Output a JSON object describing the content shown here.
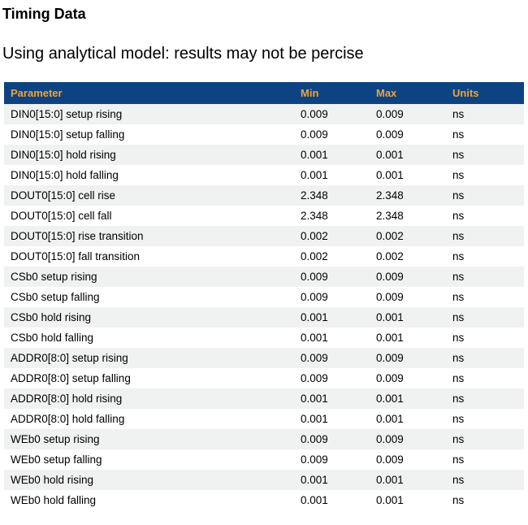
{
  "page": {
    "title": "Timing Data",
    "subtitle": "Using analytical model: results may not be percise"
  },
  "colors": {
    "header_bg": "#0d4382",
    "header_text": "#efa434",
    "row_stripe_bg": "#f0f1f1",
    "row_plain_bg": "#ffffff",
    "body_text": "#000000"
  },
  "table": {
    "columns": [
      "Parameter",
      "Min",
      "Max",
      "Units"
    ],
    "rows": [
      {
        "parameter": "DIN0[15:0] setup rising",
        "min": "0.009",
        "max": "0.009",
        "units": "ns"
      },
      {
        "parameter": "DIN0[15:0] setup falling",
        "min": "0.009",
        "max": "0.009",
        "units": "ns"
      },
      {
        "parameter": "DIN0[15:0] hold rising",
        "min": "0.001",
        "max": "0.001",
        "units": "ns"
      },
      {
        "parameter": "DIN0[15:0] hold falling",
        "min": "0.001",
        "max": "0.001",
        "units": "ns"
      },
      {
        "parameter": "DOUT0[15:0] cell rise",
        "min": "2.348",
        "max": "2.348",
        "units": "ns"
      },
      {
        "parameter": "DOUT0[15:0] cell fall",
        "min": "2.348",
        "max": "2.348",
        "units": "ns"
      },
      {
        "parameter": "DOUT0[15:0] rise transition",
        "min": "0.002",
        "max": "0.002",
        "units": "ns"
      },
      {
        "parameter": "DOUT0[15:0] fall transition",
        "min": "0.002",
        "max": "0.002",
        "units": "ns"
      },
      {
        "parameter": "CSb0 setup rising",
        "min": "0.009",
        "max": "0.009",
        "units": "ns"
      },
      {
        "parameter": "CSb0 setup falling",
        "min": "0.009",
        "max": "0.009",
        "units": "ns"
      },
      {
        "parameter": "CSb0 hold rising",
        "min": "0.001",
        "max": "0.001",
        "units": "ns"
      },
      {
        "parameter": "CSb0 hold falling",
        "min": "0.001",
        "max": "0.001",
        "units": "ns"
      },
      {
        "parameter": "ADDR0[8:0] setup rising",
        "min": "0.009",
        "max": "0.009",
        "units": "ns"
      },
      {
        "parameter": "ADDR0[8:0] setup falling",
        "min": "0.009",
        "max": "0.009",
        "units": "ns"
      },
      {
        "parameter": "ADDR0[8:0] hold rising",
        "min": "0.001",
        "max": "0.001",
        "units": "ns"
      },
      {
        "parameter": "ADDR0[8:0] hold falling",
        "min": "0.001",
        "max": "0.001",
        "units": "ns"
      },
      {
        "parameter": "WEb0 setup rising",
        "min": "0.009",
        "max": "0.009",
        "units": "ns"
      },
      {
        "parameter": "WEb0 setup falling",
        "min": "0.009",
        "max": "0.009",
        "units": "ns"
      },
      {
        "parameter": "WEb0 hold rising",
        "min": "0.001",
        "max": "0.001",
        "units": "ns"
      },
      {
        "parameter": "WEb0 hold falling",
        "min": "0.001",
        "max": "0.001",
        "units": "ns"
      }
    ]
  }
}
